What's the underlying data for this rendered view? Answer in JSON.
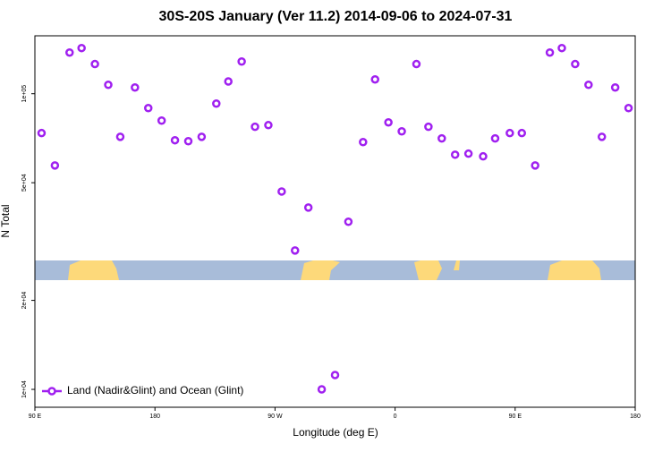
{
  "chart_data": {
    "type": "scatter",
    "title": "30S-20S January (Ver 11.2)   2014-09-06 to 2024-07-31",
    "x_label": "Longitude (deg E)",
    "y_label": "N Total",
    "xlim": [
      90,
      540
    ],
    "ylim": [
      8700,
      157000
    ],
    "ylog": true,
    "xticks": [
      {
        "value": 90,
        "label": "90 E"
      },
      {
        "value": 180,
        "label": "180"
      },
      {
        "value": 270,
        "label": "90 W"
      },
      {
        "value": 360,
        "label": "0"
      },
      {
        "value": 450,
        "label": "90 E"
      },
      {
        "value": 540,
        "label": "180"
      }
    ],
    "yticks": [
      {
        "value": 10000,
        "label": "1e+04"
      },
      {
        "value": 20000,
        "label": "2e+04"
      },
      {
        "value": 50000,
        "label": "5e+04"
      },
      {
        "value": 100000,
        "label": "1e+05"
      }
    ],
    "legend": "bottom-left",
    "series": [
      {
        "name": "Land (Nadir&Glint) and Ocean (Glint)",
        "color": "#a020f0",
        "x": [
          95,
          105,
          116,
          125,
          135,
          145,
          154,
          165,
          175,
          185,
          195,
          205,
          215,
          226,
          235,
          245,
          255,
          265,
          275,
          285,
          295,
          305,
          315,
          325,
          336,
          345,
          355,
          365,
          376,
          385,
          395,
          405,
          415,
          426,
          435,
          446,
          455,
          465,
          476,
          485,
          495,
          505,
          515,
          525,
          535
        ],
        "values": [
          73600,
          57200,
          137800,
          142700,
          126000,
          107200,
          71500,
          105000,
          89400,
          81100,
          69600,
          69100,
          71500,
          92600,
          110000,
          128500,
          77300,
          78300,
          46700,
          29500,
          41200,
          10000,
          11180,
          36900,
          68600,
          111800,
          80000,
          74600,
          126000,
          77300,
          70600,
          62200,
          62700,
          61400,
          70600,
          73600,
          73600,
          57200,
          137800,
          142700,
          126000,
          107200,
          71500,
          105000,
          89400
        ]
      }
    ]
  }
}
